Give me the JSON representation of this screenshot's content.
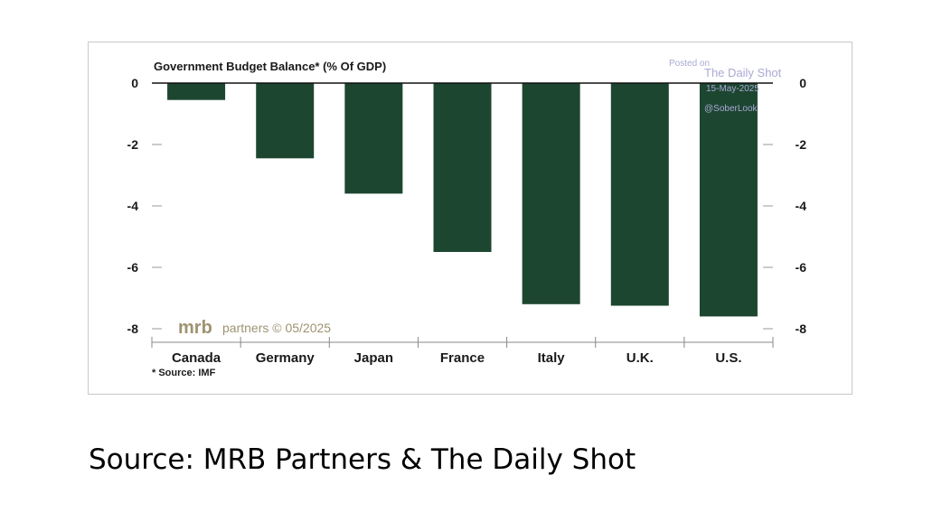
{
  "chart_data": {
    "type": "bar",
    "title": "Government Budget Balance* (% Of GDP)",
    "categories": [
      "Canada",
      "Germany",
      "Japan",
      "France",
      "Italy",
      "U.K.",
      "U.S."
    ],
    "values": [
      -0.55,
      -2.45,
      -3.6,
      -5.5,
      -7.2,
      -7.25,
      -7.6
    ],
    "ylim": [
      -8,
      0
    ],
    "yticks": [
      "0",
      "-2",
      "-4",
      "-6",
      "-8"
    ],
    "ytick_values": [
      0,
      -2,
      -4,
      -6,
      -8
    ],
    "xlabel": "",
    "ylabel": "",
    "grid": false,
    "bar_color": "#1d4630",
    "footnote": "* Source: IMF",
    "branding": {
      "mrb": "mrb",
      "rest": "partners © 05/2025"
    },
    "watermark": {
      "line1": "Posted on",
      "line2": "The Daily Shot",
      "line3": "15-May-2025",
      "line4": "@SoberLook"
    }
  },
  "page": {
    "source": "Source: MRB Partners & The Daily Shot"
  }
}
